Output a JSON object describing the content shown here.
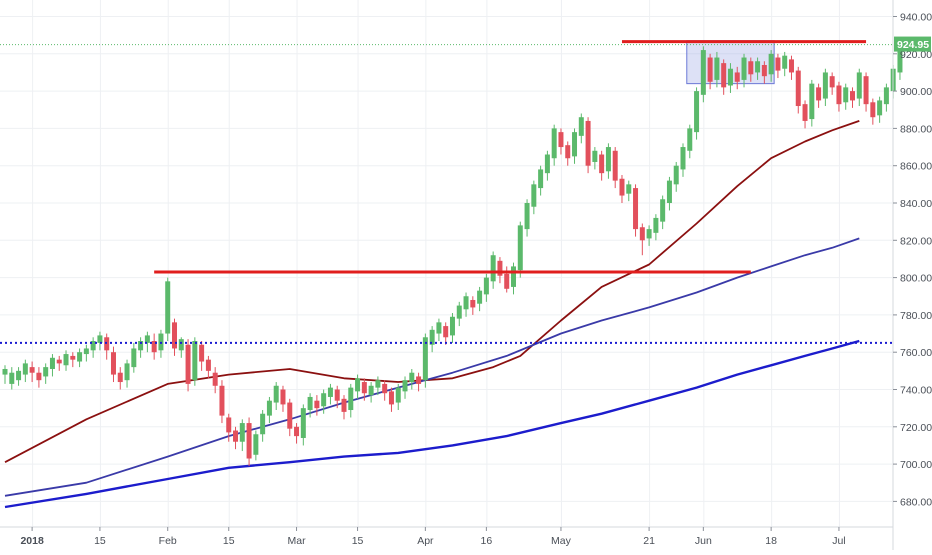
{
  "chart_data": {
    "type": "candlestick",
    "title": "",
    "xlabel": "",
    "ylabel": "",
    "ylim": [
      668,
      948
    ],
    "y_ticks": [
      "940.00",
      "920.00",
      "900.00",
      "880.00",
      "860.00",
      "840.00",
      "820.00",
      "800.00",
      "780.00",
      "760.00",
      "740.00",
      "720.00",
      "700.00",
      "680.00"
    ],
    "x_ticks": [
      {
        "label": "2018",
        "bar": 4
      },
      {
        "label": "15",
        "bar": 14
      },
      {
        "label": "Feb",
        "bar": 24
      },
      {
        "label": "15",
        "bar": 33
      },
      {
        "label": "Mar",
        "bar": 43
      },
      {
        "label": "15",
        "bar": 52
      },
      {
        "label": "Apr",
        "bar": 62
      },
      {
        "label": "16",
        "bar": 71
      },
      {
        "label": "May",
        "bar": 82
      },
      {
        "label": "21",
        "bar": 95
      },
      {
        "label": "Jun",
        "bar": 103
      },
      {
        "label": "18",
        "bar": 113
      },
      {
        "label": "Jul",
        "bar": 123
      }
    ],
    "grid": true,
    "last_price": {
      "label": "924.95",
      "value": 924.95
    },
    "colors": {
      "up": "#5bb96b",
      "down": "#e2505c",
      "price_line": "#5bb96b",
      "resistance": "#e01e1e",
      "support_dotted": "#1a1ad0",
      "ma_short": "#8b1010",
      "ma_mid": "#3a3aa8",
      "ma_long": "#1c1ccc",
      "zone": "#9ea8e6"
    },
    "horizontal_lines": [
      {
        "name": "resistance-800",
        "value": 803,
        "from_bar": 22,
        "to_bar": 110,
        "style": "solid"
      },
      {
        "name": "resistance-925",
        "value": 926.5,
        "from_bar": 91,
        "to_bar": 127,
        "style": "solid"
      },
      {
        "name": "support-765",
        "value": 765,
        "from_bar": 0,
        "to_bar": 132,
        "style": "dotted"
      }
    ],
    "zones": [
      {
        "name": "consolidation-box",
        "from_bar": 101,
        "to_bar": 113,
        "top": 927,
        "bottom": 904
      }
    ],
    "moving_averages": [
      {
        "name": "ma-short",
        "points": [
          [
            0,
            701
          ],
          [
            12,
            724
          ],
          [
            24,
            743
          ],
          [
            33,
            748
          ],
          [
            42,
            751
          ],
          [
            50,
            746
          ],
          [
            58,
            744
          ],
          [
            66,
            746
          ],
          [
            72,
            752
          ],
          [
            76,
            758
          ],
          [
            82,
            777
          ],
          [
            88,
            795
          ],
          [
            95,
            807
          ],
          [
            102,
            829
          ],
          [
            108,
            849
          ],
          [
            113,
            864
          ],
          [
            118,
            873
          ],
          [
            122,
            879
          ],
          [
            126,
            884
          ]
        ]
      },
      {
        "name": "ma-mid",
        "points": [
          [
            0,
            683
          ],
          [
            12,
            690
          ],
          [
            24,
            704
          ],
          [
            33,
            715
          ],
          [
            42,
            724
          ],
          [
            50,
            733
          ],
          [
            58,
            741
          ],
          [
            66,
            749
          ],
          [
            74,
            758
          ],
          [
            82,
            770
          ],
          [
            88,
            777
          ],
          [
            95,
            784
          ],
          [
            102,
            792
          ],
          [
            108,
            800
          ],
          [
            113,
            806
          ],
          [
            118,
            812
          ],
          [
            122,
            816
          ],
          [
            126,
            821
          ]
        ]
      },
      {
        "name": "ma-long",
        "points": [
          [
            0,
            677
          ],
          [
            12,
            684
          ],
          [
            24,
            692
          ],
          [
            33,
            698
          ],
          [
            42,
            701
          ],
          [
            50,
            704
          ],
          [
            58,
            706
          ],
          [
            66,
            710
          ],
          [
            74,
            715
          ],
          [
            82,
            722
          ],
          [
            88,
            727
          ],
          [
            95,
            734
          ],
          [
            102,
            741
          ],
          [
            108,
            748
          ],
          [
            113,
            753
          ],
          [
            118,
            758
          ],
          [
            122,
            762
          ],
          [
            126,
            766
          ]
        ]
      }
    ],
    "candles": [
      [
        748,
        751,
        745,
        743,
        753
      ],
      [
        743,
        749,
        742,
        740,
        752
      ],
      [
        745,
        750,
        744,
        742,
        752
      ],
      [
        748,
        754,
        746,
        744,
        756
      ],
      [
        752,
        749,
        746,
        744,
        755
      ],
      [
        749,
        745,
        744,
        741,
        752
      ],
      [
        747,
        752,
        745,
        743,
        754
      ],
      [
        751,
        757,
        749,
        747,
        759
      ],
      [
        756,
        754,
        752,
        750,
        758
      ],
      [
        753,
        759,
        752,
        750,
        761
      ],
      [
        758,
        756,
        754,
        752,
        760
      ],
      [
        755,
        760,
        754,
        752,
        762
      ],
      [
        759,
        762,
        757,
        755,
        764
      ],
      [
        761,
        766,
        758,
        757,
        768
      ],
      [
        765,
        769,
        763,
        761,
        771
      ],
      [
        768,
        761,
        758,
        756,
        770
      ],
      [
        760,
        748,
        746,
        744,
        763
      ],
      [
        749,
        744,
        742,
        740,
        752
      ],
      [
        745,
        754,
        743,
        741,
        756
      ],
      [
        752,
        762,
        750,
        749,
        765
      ],
      [
        761,
        766,
        759,
        757,
        768
      ],
      [
        765,
        769,
        762,
        760,
        771
      ],
      [
        766,
        760,
        758,
        756,
        770
      ],
      [
        761,
        770,
        759,
        757,
        772
      ],
      [
        770,
        798,
        768,
        766,
        800
      ],
      [
        776,
        762,
        760,
        758,
        778
      ],
      [
        761,
        767,
        759,
        757,
        768
      ],
      [
        764,
        743,
        741,
        739,
        767
      ],
      [
        745,
        766,
        744,
        742,
        768
      ],
      [
        764,
        755,
        752,
        750,
        766
      ],
      [
        756,
        750,
        748,
        746,
        758
      ],
      [
        749,
        742,
        740,
        738,
        752
      ],
      [
        742,
        726,
        724,
        722,
        745
      ],
      [
        725,
        717,
        714,
        712,
        727
      ],
      [
        718,
        712,
        710,
        708,
        720
      ],
      [
        712,
        722,
        711,
        707,
        724
      ],
      [
        722,
        703,
        701,
        699,
        725
      ],
      [
        705,
        716,
        704,
        702,
        718
      ],
      [
        716,
        727,
        714,
        712,
        729
      ],
      [
        726,
        734,
        724,
        722,
        736
      ],
      [
        733,
        742,
        731,
        729,
        744
      ],
      [
        740,
        732,
        730,
        728,
        742
      ],
      [
        733,
        719,
        717,
        715,
        735
      ],
      [
        720,
        715,
        713,
        711,
        722
      ],
      [
        714,
        730,
        712,
        710,
        732
      ],
      [
        729,
        736,
        727,
        725,
        738
      ],
      [
        734,
        730,
        728,
        726,
        737
      ],
      [
        731,
        738,
        729,
        727,
        740
      ],
      [
        736,
        741,
        734,
        732,
        743
      ],
      [
        740,
        734,
        732,
        730,
        742
      ],
      [
        735,
        728,
        726,
        724,
        737
      ],
      [
        729,
        741,
        727,
        725,
        743
      ],
      [
        739,
        746,
        737,
        735,
        748
      ],
      [
        744,
        738,
        736,
        734,
        746
      ],
      [
        737,
        742,
        735,
        733,
        744
      ],
      [
        741,
        745,
        739,
        737,
        747
      ],
      [
        743,
        738,
        736,
        734,
        745
      ],
      [
        739,
        732,
        730,
        728,
        741
      ],
      [
        733,
        741,
        731,
        729,
        743
      ],
      [
        739,
        745,
        737,
        735,
        747
      ],
      [
        744,
        749,
        742,
        740,
        751
      ],
      [
        747,
        743,
        741,
        739,
        749
      ],
      [
        745,
        768,
        743,
        741,
        770
      ],
      [
        764,
        772,
        762,
        760,
        774
      ],
      [
        770,
        776,
        768,
        766,
        778
      ],
      [
        774,
        768,
        766,
        764,
        776
      ],
      [
        769,
        779,
        767,
        765,
        781
      ],
      [
        778,
        785,
        776,
        774,
        787
      ],
      [
        783,
        790,
        781,
        779,
        792
      ],
      [
        788,
        784,
        782,
        780,
        790
      ],
      [
        786,
        793,
        784,
        782,
        795
      ],
      [
        791,
        800,
        789,
        787,
        802
      ],
      [
        798,
        812,
        796,
        794,
        814
      ],
      [
        809,
        801,
        799,
        797,
        811
      ],
      [
        802,
        794,
        800,
        792,
        806
      ],
      [
        795,
        806,
        793,
        791,
        808
      ],
      [
        804,
        828,
        802,
        800,
        830
      ],
      [
        826,
        840,
        824,
        822,
        842
      ],
      [
        838,
        850,
        836,
        834,
        852
      ],
      [
        848,
        858,
        846,
        844,
        860
      ],
      [
        856,
        866,
        854,
        852,
        868
      ],
      [
        864,
        880,
        862,
        860,
        882
      ],
      [
        878,
        870,
        868,
        866,
        880
      ],
      [
        871,
        864,
        862,
        860,
        873
      ],
      [
        865,
        878,
        863,
        861,
        880
      ],
      [
        876,
        886,
        874,
        872,
        888
      ],
      [
        884,
        860,
        858,
        856,
        886
      ],
      [
        862,
        868,
        860,
        858,
        870
      ],
      [
        866,
        856,
        854,
        852,
        868
      ],
      [
        857,
        870,
        855,
        853,
        872
      ],
      [
        868,
        852,
        850,
        848,
        870
      ],
      [
        853,
        844,
        842,
        840,
        855
      ],
      [
        845,
        850,
        843,
        841,
        852
      ],
      [
        848,
        826,
        824,
        822,
        850
      ],
      [
        827,
        820,
        818,
        812,
        829
      ],
      [
        821,
        826,
        819,
        817,
        828
      ],
      [
        824,
        832,
        822,
        820,
        834
      ],
      [
        830,
        842,
        828,
        826,
        844
      ],
      [
        840,
        852,
        838,
        836,
        854
      ],
      [
        850,
        860,
        848,
        846,
        862
      ],
      [
        858,
        870,
        856,
        854,
        872
      ],
      [
        868,
        880,
        866,
        864,
        882
      ],
      [
        878,
        900,
        876,
        874,
        902
      ],
      [
        898,
        922,
        896,
        894,
        924
      ],
      [
        918,
        905,
        903,
        901,
        920
      ],
      [
        906,
        918,
        904,
        902,
        921
      ],
      [
        915,
        902,
        900,
        898,
        917
      ],
      [
        903,
        912,
        901,
        899,
        915
      ],
      [
        910,
        905,
        903,
        901,
        913
      ],
      [
        906,
        918,
        904,
        902,
        920
      ],
      [
        916,
        909,
        907,
        905,
        918
      ],
      [
        910,
        916,
        908,
        906,
        918
      ],
      [
        914,
        908,
        906,
        904,
        916
      ],
      [
        909,
        920,
        907,
        905,
        922
      ],
      [
        918,
        911,
        909,
        907,
        920
      ],
      [
        912,
        919,
        910,
        908,
        921
      ],
      [
        917,
        910,
        908,
        906,
        919
      ],
      [
        911,
        892,
        890,
        888,
        913
      ],
      [
        893,
        884,
        882,
        880,
        895
      ],
      [
        885,
        904,
        883,
        881,
        906
      ],
      [
        902,
        895,
        893,
        891,
        904
      ],
      [
        896,
        910,
        894,
        892,
        912
      ],
      [
        908,
        902,
        900,
        898,
        910
      ],
      [
        903,
        893,
        891,
        889,
        905
      ],
      [
        894,
        902,
        892,
        890,
        904
      ],
      [
        900,
        895,
        893,
        891,
        902
      ],
      [
        896,
        910,
        894,
        892,
        912
      ],
      [
        908,
        893,
        891,
        889,
        910
      ],
      [
        894,
        886,
        884,
        882,
        896
      ],
      [
        887,
        895,
        885,
        883,
        897
      ],
      [
        893,
        902,
        891,
        889,
        904
      ],
      [
        900,
        912,
        898,
        896,
        914
      ],
      [
        910,
        925,
        908,
        906,
        927
      ]
    ]
  }
}
